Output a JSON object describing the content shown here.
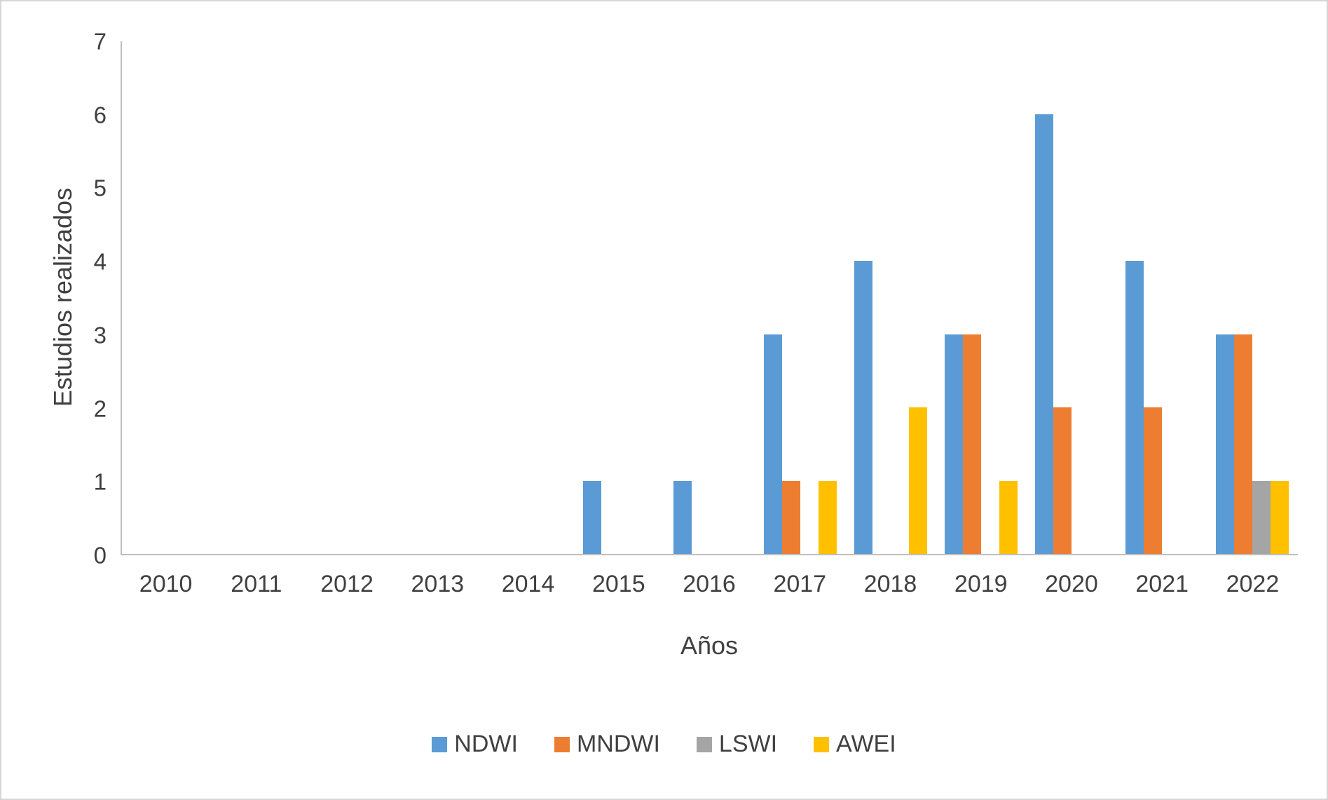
{
  "chart_data": {
    "type": "bar",
    "title": "",
    "xlabel": "Años",
    "ylabel": "Estudios realizados",
    "ylim": [
      0,
      7
    ],
    "yticks": [
      0,
      1,
      2,
      3,
      4,
      5,
      6,
      7
    ],
    "grid": false,
    "legend_position": "bottom",
    "categories": [
      "2010",
      "2011",
      "2012",
      "2013",
      "2014",
      "2015",
      "2016",
      "2017",
      "2018",
      "2019",
      "2020",
      "2021",
      "2022"
    ],
    "series": [
      {
        "name": "NDWI",
        "color": "#5B9BD5",
        "values": [
          0,
          0,
          0,
          0,
          0,
          1,
          1,
          3,
          4,
          3,
          6,
          4,
          3
        ]
      },
      {
        "name": "MNDWI",
        "color": "#ED7D31",
        "values": [
          0,
          0,
          0,
          0,
          0,
          0,
          0,
          1,
          0,
          3,
          2,
          2,
          3
        ]
      },
      {
        "name": "LSWI",
        "color": "#A5A5A5",
        "values": [
          0,
          0,
          0,
          0,
          0,
          0,
          0,
          0,
          0,
          0,
          0,
          0,
          1
        ]
      },
      {
        "name": "AWEI",
        "color": "#FFC000",
        "values": [
          0,
          0,
          0,
          0,
          0,
          0,
          0,
          1,
          2,
          1,
          0,
          0,
          1
        ]
      }
    ]
  }
}
